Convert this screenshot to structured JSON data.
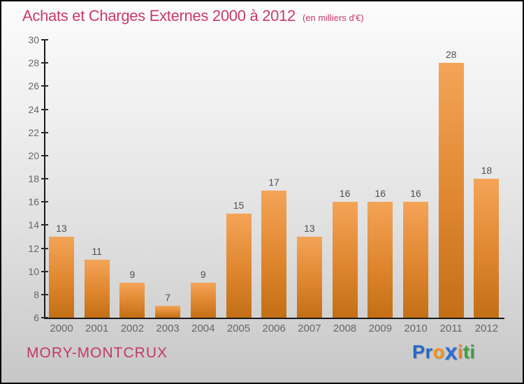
{
  "header": {
    "title": "Achats et Charges Externes 2000 à 2012",
    "subtitle": "(en milliers d'€)"
  },
  "chart_data": {
    "type": "bar",
    "categories": [
      "2000",
      "2001",
      "2002",
      "2003",
      "2004",
      "2005",
      "2006",
      "2007",
      "2008",
      "2009",
      "2010",
      "2011",
      "2012"
    ],
    "values": [
      13,
      11,
      9,
      7,
      9,
      15,
      17,
      13,
      16,
      16,
      16,
      28,
      18
    ],
    "title": "Achats et Charges Externes 2000 à 2012",
    "subtitle": "(en milliers d'€)",
    "xlabel": "",
    "ylabel": "",
    "ylim": [
      6,
      30
    ],
    "ytick_step": 2,
    "grid": false,
    "legend": "none",
    "value_labels_shown": true,
    "bar_color_top": "#f4a458",
    "bar_color_bottom": "#c36f15",
    "axis_color": "#1a1a1a",
    "tick_label_color": "#666666",
    "value_label_color": "#4f4f4f"
  },
  "footer": {
    "commune": "MORY-MONTCRUX",
    "logo_letters": [
      {
        "ch": "P",
        "color": "#2368c8",
        "big": false
      },
      {
        "ch": "r",
        "color": "#2368c8",
        "big": false
      },
      {
        "ch": "o",
        "color": "#f6921e",
        "big": false
      },
      {
        "ch": "x",
        "color": "#2d6fd2",
        "big": true
      },
      {
        "ch": "i",
        "color": "#ef7d23",
        "big": false
      },
      {
        "ch": "t",
        "color": "#3ba03a",
        "big": false
      },
      {
        "ch": "i",
        "color": "#3ba03a",
        "big": false
      }
    ]
  },
  "colors": {
    "title_text": "#c93a67",
    "commune_text": "#c23a64",
    "background_top": "#fcfcfc",
    "background_bottom": "#c7c7c7",
    "frame_border": "#000000"
  }
}
